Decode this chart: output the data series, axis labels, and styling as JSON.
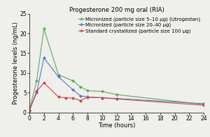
{
  "title": "Progesterone 200 mg oral (RIA)",
  "xlabel": "Time (hours)",
  "ylabel": "Progesterone levels (ng/mL)",
  "xlim": [
    0,
    24
  ],
  "ylim": [
    0,
    25
  ],
  "yticks": [
    0,
    5,
    10,
    15,
    20,
    25
  ],
  "xticks": [
    0,
    2,
    4,
    6,
    8,
    10,
    12,
    14,
    16,
    18,
    20,
    22,
    24
  ],
  "series": [
    {
      "label": "Micronized (particle size 5–10 μg) (Utrogestan)",
      "color": "#5aab5a",
      "marker": "D",
      "x": [
        0,
        1,
        2,
        4,
        6,
        7,
        8,
        10,
        12,
        24
      ],
      "y": [
        0.5,
        8.0,
        21.2,
        9.5,
        8.0,
        6.5,
        5.5,
        5.3,
        4.5,
        2.0
      ]
    },
    {
      "label": "Micronized (particle size 20–40 μg)",
      "color": "#5577cc",
      "marker": "D",
      "x": [
        0,
        1,
        2,
        4,
        6,
        7,
        8,
        10,
        12,
        24
      ],
      "y": [
        0.5,
        5.0,
        13.8,
        9.0,
        5.7,
        4.2,
        3.9,
        3.7,
        3.5,
        2.2
      ]
    },
    {
      "label": "Standard crystallized (particle size 100 μg)",
      "color": "#cc4444",
      "marker": "D",
      "x": [
        0,
        1,
        2,
        4,
        5,
        6,
        7,
        8,
        10,
        12,
        24
      ],
      "y": [
        0.5,
        5.3,
        7.5,
        3.9,
        3.7,
        3.6,
        3.0,
        3.8,
        3.7,
        3.4,
        1.8
      ]
    }
  ],
  "background_color": "#efefeb",
  "plot_bg_color": "#efefeb",
  "title_fontsize": 6.2,
  "label_fontsize": 6.0,
  "tick_fontsize": 5.5,
  "legend_fontsize": 5.0
}
